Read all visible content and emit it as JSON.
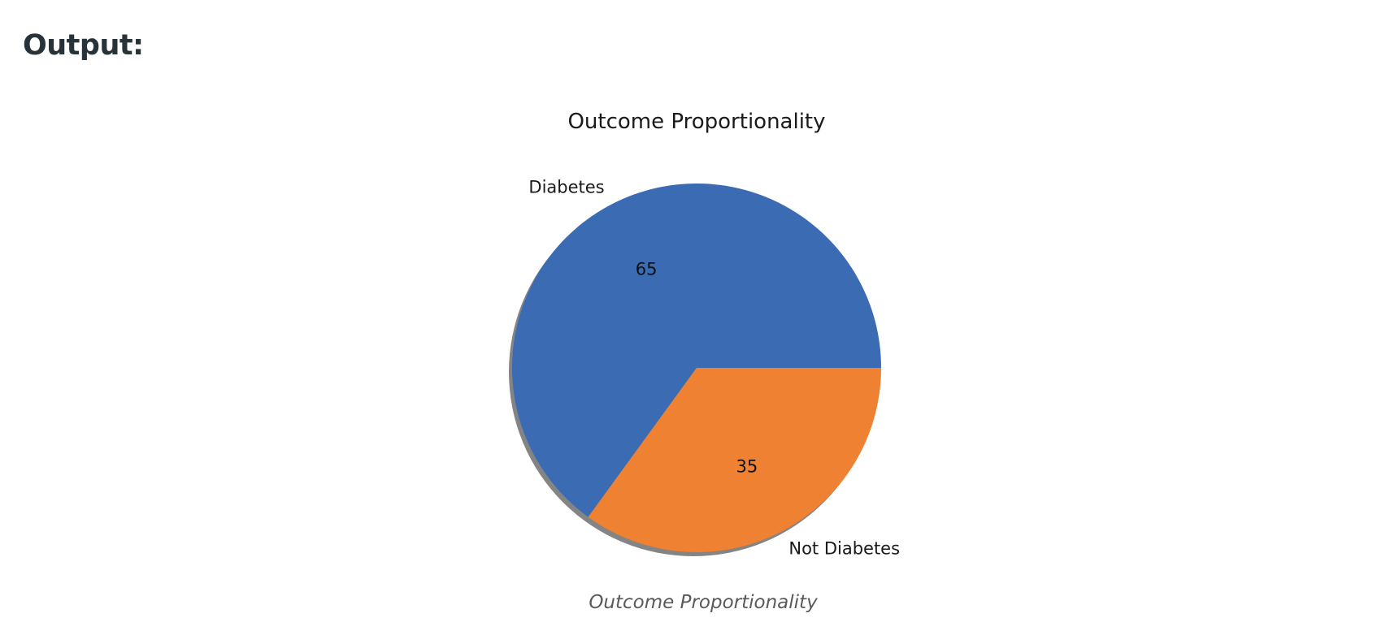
{
  "heading": {
    "text": "Output",
    "suffix": ":"
  },
  "caption": "Outcome Proportionality",
  "chart_data": {
    "type": "pie",
    "title": "Outcome Proportionality",
    "categories": [
      "Diabetes",
      "Not Diabetes"
    ],
    "values": [
      65,
      35
    ],
    "value_labels": [
      "65",
      "35"
    ],
    "colors": [
      "#3a6bb3",
      "#ee8132"
    ],
    "shadow": true,
    "start_angle_deg": 0,
    "direction": "counterclockwise",
    "legend": "none"
  }
}
